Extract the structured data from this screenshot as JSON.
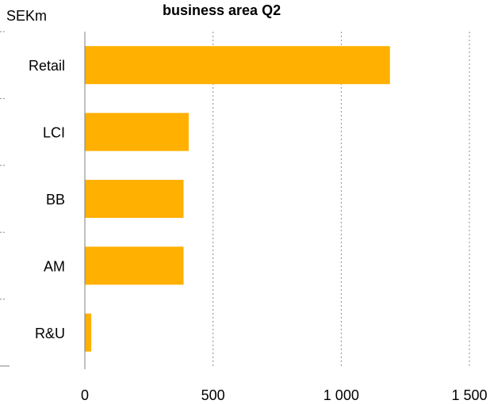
{
  "chart_data": {
    "type": "bar",
    "orientation": "horizontal",
    "title": "business area Q2",
    "unit_label": "SEKm",
    "xlabel": "",
    "ylabel": "",
    "categories": [
      "Retail",
      "LCI",
      "BB",
      "AM",
      "R&U"
    ],
    "values": [
      1190,
      405,
      385,
      385,
      25
    ],
    "xlim": [
      0,
      1500
    ],
    "xticks": [
      0,
      500,
      1000,
      1500
    ],
    "xtick_labels": [
      "0",
      "500",
      "1 000",
      "1 500"
    ],
    "grid": "vertical dotted",
    "legend": "none",
    "bar_color": "#FFB000"
  }
}
